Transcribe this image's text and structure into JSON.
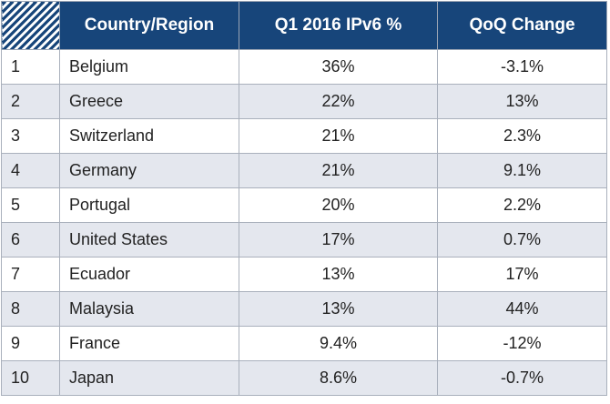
{
  "table": {
    "header": [
      "Country/Region",
      "Q1 2016 IPv6 %",
      "QoQ Change"
    ],
    "rows": [
      [
        "1",
        "Belgium",
        "36%",
        "-3.1%"
      ],
      [
        "2",
        "Greece",
        "22%",
        "13%"
      ],
      [
        "3",
        "Switzerland",
        "21%",
        "2.3%"
      ],
      [
        "4",
        "Germany",
        "21%",
        "9.1%"
      ],
      [
        "5",
        "Portugal",
        "20%",
        "2.2%"
      ],
      [
        "6",
        "United States",
        "17%",
        "0.7%"
      ],
      [
        "7",
        "Ecuador",
        "13%",
        "17%"
      ],
      [
        "8",
        "Malaysia",
        "13%",
        "44%"
      ],
      [
        "9",
        "France",
        "9.4%",
        "-12%"
      ],
      [
        "10",
        "Japan",
        "8.6%",
        "-0.7%"
      ]
    ]
  }
}
